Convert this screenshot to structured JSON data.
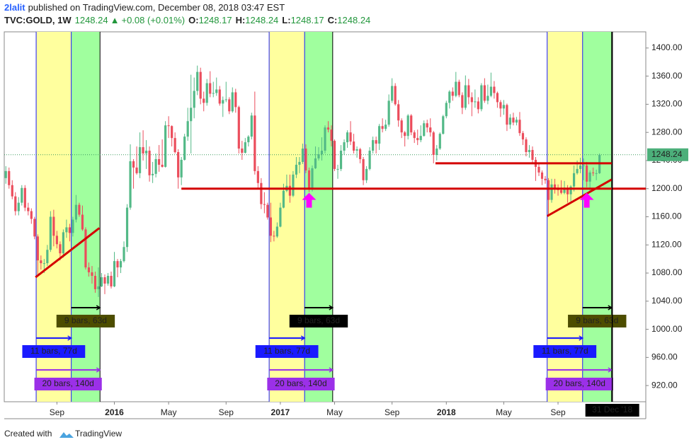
{
  "chart_data": {
    "type": "candlestick",
    "author": "2lalit",
    "subtitle": "published on TradingView.com, December 08, 2018 03:47 EST",
    "title": "TVC:GOLD, 1W",
    "quote": {
      "last": 1248.24,
      "change": "+0.08 (+0.01%)",
      "open_label": "O:",
      "open": 1248.17,
      "high_label": "H:",
      "high": 1248.24,
      "low_label": "L:",
      "low": 1248.17,
      "close_label": "C:",
      "close": 1248.24
    },
    "up_color": "#53b987",
    "down_color": "#eb4d5c",
    "xlim": [
      -0.5,
      200.5
    ],
    "ylim": [
      897,
      1423
    ],
    "yticks": [
      {
        "value": 920,
        "label": "920.00"
      },
      {
        "value": 960,
        "label": "960.00"
      },
      {
        "value": 1000,
        "label": "1000.00"
      },
      {
        "value": 1040,
        "label": "1040.00"
      },
      {
        "value": 1080,
        "label": "1080.00"
      },
      {
        "value": 1120,
        "label": "1120.00"
      },
      {
        "value": 1160,
        "label": "1160.00"
      },
      {
        "value": 1200,
        "label": "1200.00"
      },
      {
        "value": 1240,
        "label": "1240.00"
      },
      {
        "value": 1280,
        "label": "1280.00"
      },
      {
        "value": 1320,
        "label": "1320.00"
      },
      {
        "value": 1360,
        "label": "1360.00"
      },
      {
        "value": 1400,
        "label": "1400.00"
      }
    ],
    "xticks": [
      {
        "value": 16,
        "label": "Sep"
      },
      {
        "value": 34,
        "label": "2016"
      },
      {
        "value": 51,
        "label": "May"
      },
      {
        "value": 69,
        "label": "Sep"
      },
      {
        "value": 86,
        "label": "2017"
      },
      {
        "value": 103,
        "label": "May"
      },
      {
        "value": 121,
        "label": "Sep"
      },
      {
        "value": 138,
        "label": "2018"
      },
      {
        "value": 156,
        "label": "May"
      },
      {
        "value": 173,
        "label": "Sep"
      }
    ],
    "date_line": {
      "value": 190,
      "label": "31 Dec '18"
    },
    "last_price": {
      "value": 1248.24,
      "label": "1248.24"
    },
    "range_markers": [
      {
        "start": 9.5,
        "split": 20.5,
        "end": 29.5,
        "first": "11 bars, 77d",
        "second": "9 bars, 63d",
        "total": "20 bars, 140d"
      },
      {
        "start": 82.5,
        "split": 93.6,
        "end": 102.4,
        "first": "11 bars, 77d",
        "second": "9 bars, 63d",
        "total": "20 bars, 140d"
      },
      {
        "start": 169.6,
        "split": 180.7,
        "end": 189.8,
        "first": "11 bars, 77d",
        "second": "9 bars, 63d",
        "total": "20 bars, 140d"
      }
    ],
    "trendlines": [
      {
        "x": [
          55,
          200.5
        ],
        "y": [
          1200,
          1200
        ]
      },
      {
        "x": [
          134.6,
          190
        ],
        "y": [
          1236,
          1236
        ]
      },
      {
        "x": [
          9.3,
          29.3
        ],
        "y": [
          1074,
          1144
        ]
      },
      {
        "x": [
          169.6,
          189.8
        ],
        "y": [
          1161,
          1213
        ]
      }
    ],
    "arrows": [
      {
        "x": 95,
        "y": 1183
      },
      {
        "x": 182,
        "y": 1183
      }
    ],
    "candles": [
      [
        1215,
        1232,
        1207,
        1225
      ],
      [
        1225,
        1230,
        1200,
        1205
      ],
      [
        1205,
        1212,
        1185,
        1189
      ],
      [
        1189,
        1195,
        1162,
        1168
      ],
      [
        1168,
        1188,
        1162,
        1180
      ],
      [
        1180,
        1205,
        1176,
        1201
      ],
      [
        1201,
        1205,
        1168,
        1173
      ],
      [
        1173,
        1180,
        1162,
        1168
      ],
      [
        1168,
        1172,
        1150,
        1157
      ],
      [
        1157,
        1160,
        1128,
        1132
      ],
      [
        1132,
        1135,
        1077,
        1098
      ],
      [
        1098,
        1105,
        1085,
        1094
      ],
      [
        1094,
        1100,
        1080,
        1094
      ],
      [
        1094,
        1120,
        1090,
        1113
      ],
      [
        1113,
        1168,
        1110,
        1160
      ],
      [
        1160,
        1170,
        1118,
        1133
      ],
      [
        1133,
        1140,
        1115,
        1121
      ],
      [
        1121,
        1125,
        1098,
        1108
      ],
      [
        1108,
        1142,
        1102,
        1138
      ],
      [
        1138,
        1156,
        1130,
        1145
      ],
      [
        1145,
        1150,
        1125,
        1137
      ],
      [
        1137,
        1160,
        1132,
        1156
      ],
      [
        1156,
        1191,
        1152,
        1177
      ],
      [
        1177,
        1180,
        1160,
        1163
      ],
      [
        1163,
        1176,
        1140,
        1142
      ],
      [
        1142,
        1145,
        1085,
        1088
      ],
      [
        1088,
        1095,
        1075,
        1081
      ],
      [
        1081,
        1090,
        1065,
        1076
      ],
      [
        1076,
        1082,
        1052,
        1057
      ],
      [
        1057,
        1088,
        1046,
        1061
      ],
      [
        1061,
        1080,
        1060,
        1074
      ],
      [
        1074,
        1078,
        1050,
        1065
      ],
      [
        1065,
        1080,
        1062,
        1076
      ],
      [
        1076,
        1082,
        1058,
        1061
      ],
      [
        1061,
        1110,
        1060,
        1097
      ],
      [
        1097,
        1100,
        1074,
        1088
      ],
      [
        1088,
        1100,
        1080,
        1097
      ],
      [
        1097,
        1125,
        1095,
        1117
      ],
      [
        1117,
        1178,
        1110,
        1173
      ],
      [
        1173,
        1263,
        1170,
        1239
      ],
      [
        1239,
        1242,
        1200,
        1230
      ],
      [
        1230,
        1260,
        1220,
        1222
      ],
      [
        1222,
        1280,
        1215,
        1259
      ],
      [
        1259,
        1283,
        1240,
        1250
      ],
      [
        1250,
        1269,
        1228,
        1254
      ],
      [
        1254,
        1260,
        1210,
        1219
      ],
      [
        1219,
        1238,
        1208,
        1221
      ],
      [
        1221,
        1250,
        1216,
        1242
      ],
      [
        1242,
        1262,
        1224,
        1234
      ],
      [
        1234,
        1270,
        1230,
        1231
      ],
      [
        1231,
        1296,
        1230,
        1290
      ],
      [
        1290,
        1303,
        1272,
        1289
      ],
      [
        1289,
        1290,
        1260,
        1272
      ],
      [
        1272,
        1280,
        1250,
        1252
      ],
      [
        1252,
        1256,
        1200,
        1216
      ],
      [
        1216,
        1245,
        1205,
        1241
      ],
      [
        1241,
        1278,
        1240,
        1274
      ],
      [
        1274,
        1315,
        1268,
        1296
      ],
      [
        1296,
        1362,
        1250,
        1315
      ],
      [
        1315,
        1358,
        1300,
        1339
      ],
      [
        1339,
        1375,
        1333,
        1366
      ],
      [
        1366,
        1372,
        1320,
        1328
      ],
      [
        1328,
        1338,
        1310,
        1322
      ],
      [
        1322,
        1356,
        1318,
        1350
      ],
      [
        1350,
        1367,
        1330,
        1335
      ],
      [
        1335,
        1352,
        1330,
        1336
      ],
      [
        1336,
        1358,
        1332,
        1341
      ],
      [
        1341,
        1346,
        1318,
        1321
      ],
      [
        1321,
        1331,
        1302,
        1326
      ],
      [
        1326,
        1352,
        1323,
        1327
      ],
      [
        1327,
        1330,
        1306,
        1310
      ],
      [
        1310,
        1344,
        1308,
        1337
      ],
      [
        1337,
        1342,
        1308,
        1316
      ],
      [
        1316,
        1318,
        1250,
        1257
      ],
      [
        1257,
        1268,
        1241,
        1251
      ],
      [
        1251,
        1272,
        1250,
        1266
      ],
      [
        1266,
        1276,
        1260,
        1274
      ],
      [
        1274,
        1308,
        1270,
        1304
      ],
      [
        1304,
        1338,
        1220,
        1225
      ],
      [
        1225,
        1232,
        1200,
        1208
      ],
      [
        1208,
        1215,
        1171,
        1178
      ],
      [
        1178,
        1195,
        1165,
        1177
      ],
      [
        1177,
        1180,
        1156,
        1159
      ],
      [
        1159,
        1180,
        1124,
        1133
      ],
      [
        1133,
        1140,
        1125,
        1132
      ],
      [
        1132,
        1152,
        1130,
        1146
      ],
      [
        1146,
        1180,
        1145,
        1173
      ],
      [
        1173,
        1207,
        1172,
        1197
      ],
      [
        1197,
        1220,
        1195,
        1204
      ],
      [
        1204,
        1220,
        1180,
        1190
      ],
      [
        1190,
        1225,
        1188,
        1220
      ],
      [
        1220,
        1245,
        1215,
        1234
      ],
      [
        1234,
        1245,
        1222,
        1238
      ],
      [
        1238,
        1264,
        1235,
        1257
      ],
      [
        1257,
        1263,
        1222,
        1226
      ],
      [
        1226,
        1230,
        1195,
        1201
      ],
      [
        1201,
        1233,
        1196,
        1229
      ],
      [
        1229,
        1260,
        1228,
        1243
      ],
      [
        1243,
        1259,
        1240,
        1249
      ],
      [
        1249,
        1273,
        1240,
        1254
      ],
      [
        1254,
        1290,
        1250,
        1287
      ],
      [
        1287,
        1296,
        1280,
        1284
      ],
      [
        1284,
        1290,
        1260,
        1268
      ],
      [
        1268,
        1270,
        1225,
        1228
      ],
      [
        1228,
        1234,
        1214,
        1228
      ],
      [
        1228,
        1262,
        1225,
        1254
      ],
      [
        1254,
        1270,
        1248,
        1266
      ],
      [
        1266,
        1283,
        1258,
        1280
      ],
      [
        1280,
        1296,
        1262,
        1267
      ],
      [
        1267,
        1278,
        1250,
        1254
      ],
      [
        1254,
        1260,
        1244,
        1256
      ],
      [
        1256,
        1258,
        1236,
        1242
      ],
      [
        1242,
        1245,
        1205,
        1212
      ],
      [
        1212,
        1232,
        1208,
        1228
      ],
      [
        1228,
        1259,
        1226,
        1254
      ],
      [
        1254,
        1274,
        1250,
        1269
      ],
      [
        1269,
        1274,
        1250,
        1264
      ],
      [
        1264,
        1292,
        1255,
        1289
      ],
      [
        1289,
        1300,
        1280,
        1285
      ],
      [
        1285,
        1298,
        1282,
        1291
      ],
      [
        1291,
        1334,
        1288,
        1325
      ],
      [
        1325,
        1357,
        1322,
        1346
      ],
      [
        1346,
        1350,
        1318,
        1320
      ],
      [
        1320,
        1326,
        1288,
        1297
      ],
      [
        1297,
        1300,
        1272,
        1280
      ],
      [
        1280,
        1282,
        1260,
        1275
      ],
      [
        1275,
        1306,
        1270,
        1304
      ],
      [
        1304,
        1306,
        1276,
        1280
      ],
      [
        1280,
        1283,
        1265,
        1272
      ],
      [
        1272,
        1284,
        1262,
        1269
      ],
      [
        1269,
        1290,
        1266,
        1275
      ],
      [
        1275,
        1297,
        1274,
        1293
      ],
      [
        1293,
        1298,
        1280,
        1287
      ],
      [
        1287,
        1300,
        1274,
        1280
      ],
      [
        1280,
        1282,
        1236,
        1248
      ],
      [
        1248,
        1262,
        1240,
        1257
      ],
      [
        1257,
        1280,
        1255,
        1278
      ],
      [
        1278,
        1305,
        1277,
        1303
      ],
      [
        1303,
        1325,
        1300,
        1322
      ],
      [
        1322,
        1340,
        1314,
        1338
      ],
      [
        1338,
        1344,
        1325,
        1332
      ],
      [
        1332,
        1366,
        1330,
        1352
      ],
      [
        1352,
        1355,
        1330,
        1333
      ],
      [
        1333,
        1337,
        1306,
        1315
      ],
      [
        1315,
        1361,
        1312,
        1347
      ],
      [
        1347,
        1356,
        1320,
        1330
      ],
      [
        1330,
        1337,
        1303,
        1323
      ],
      [
        1323,
        1341,
        1315,
        1324
      ],
      [
        1324,
        1330,
        1307,
        1313
      ],
      [
        1313,
        1350,
        1310,
        1347
      ],
      [
        1347,
        1357,
        1322,
        1325
      ],
      [
        1325,
        1348,
        1320,
        1332
      ],
      [
        1332,
        1365,
        1330,
        1345
      ],
      [
        1345,
        1353,
        1328,
        1336
      ],
      [
        1336,
        1338,
        1315,
        1323
      ],
      [
        1323,
        1326,
        1302,
        1314
      ],
      [
        1314,
        1326,
        1305,
        1319
      ],
      [
        1319,
        1321,
        1282,
        1291
      ],
      [
        1291,
        1306,
        1285,
        1301
      ],
      [
        1301,
        1308,
        1290,
        1294
      ],
      [
        1294,
        1302,
        1290,
        1298
      ],
      [
        1298,
        1309,
        1275,
        1279
      ],
      [
        1279,
        1282,
        1262,
        1270
      ],
      [
        1270,
        1273,
        1246,
        1252
      ],
      [
        1252,
        1262,
        1244,
        1255
      ],
      [
        1255,
        1260,
        1236,
        1241
      ],
      [
        1241,
        1245,
        1211,
        1231
      ],
      [
        1231,
        1236,
        1218,
        1223
      ],
      [
        1223,
        1226,
        1205,
        1214
      ],
      [
        1214,
        1218,
        1207,
        1212
      ],
      [
        1212,
        1215,
        1160,
        1184
      ],
      [
        1184,
        1214,
        1180,
        1206
      ],
      [
        1206,
        1214,
        1193,
        1201
      ],
      [
        1201,
        1206,
        1190,
        1198
      ],
      [
        1198,
        1212,
        1192,
        1194
      ],
      [
        1194,
        1211,
        1192,
        1200
      ],
      [
        1200,
        1205,
        1180,
        1192
      ],
      [
        1192,
        1205,
        1182,
        1203
      ],
      [
        1203,
        1233,
        1196,
        1222
      ],
      [
        1222,
        1240,
        1220,
        1228
      ],
      [
        1228,
        1244,
        1222,
        1233
      ],
      [
        1233,
        1243,
        1212,
        1233
      ],
      [
        1233,
        1238,
        1202,
        1210
      ],
      [
        1210,
        1226,
        1196,
        1223
      ],
      [
        1223,
        1230,
        1218,
        1222
      ],
      [
        1222,
        1227,
        1212,
        1222
      ],
      [
        1222,
        1250,
        1221,
        1248.24
      ]
    ]
  },
  "footer": {
    "prefix": "Created with",
    "brand": "TradingView"
  }
}
